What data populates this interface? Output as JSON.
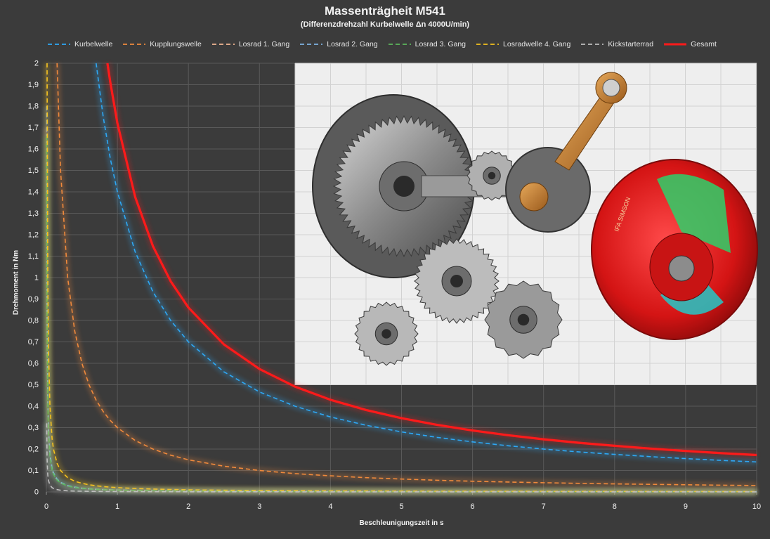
{
  "title": "Massenträgheit M541",
  "subtitle": "(Differenzdrehzahl Kurbelwelle Δn 4000U/min)",
  "chart_data": {
    "type": "line",
    "title": "Massenträgheit M541",
    "subtitle": "(Differenzdrehzahl Kurbelwelle Δn 4000U/min)",
    "xlabel": "Beschleunigungszeit in s",
    "ylabel": "Drehmoment in Nm",
    "xlim": [
      0,
      10
    ],
    "ylim": [
      0,
      2
    ],
    "x_ticks": [
      "0",
      "1",
      "2",
      "3",
      "4",
      "5",
      "6",
      "7",
      "8",
      "9",
      "10"
    ],
    "y_ticks": [
      "0",
      "0,1",
      "0,2",
      "0,3",
      "0,4",
      "0,5",
      "0,6",
      "0,7",
      "0,8",
      "0,9",
      "1",
      "1,1",
      "1,2",
      "1,3",
      "1,4",
      "1,5",
      "1,6",
      "1,7",
      "1,8",
      "1,9",
      "2"
    ],
    "grid": true,
    "legend_position": "top",
    "x": [
      0.01,
      0.02,
      0.03,
      0.05,
      0.08,
      0.1,
      0.15,
      0.2,
      0.3,
      0.4,
      0.5,
      0.6,
      0.7,
      0.8,
      0.9,
      1,
      1.25,
      1.5,
      1.75,
      2,
      2.5,
      3,
      3.5,
      4,
      4.5,
      5,
      5.5,
      6,
      6.5,
      7,
      7.5,
      8,
      8.5,
      9,
      9.5,
      10
    ],
    "series": [
      {
        "name": "Kurbelwelle",
        "color": "#2ea8f5",
        "dash": true,
        "k": 1.4
      },
      {
        "name": "Kupplungswelle",
        "color": "#f08a3c",
        "dash": true,
        "k": 0.3
      },
      {
        "name": "Losrad 1. Gang",
        "color": "#f3b893",
        "dash": true,
        "k": 0.0085
      },
      {
        "name": "Losrad 2. Gang",
        "color": "#7fb2e2",
        "dash": true,
        "k": 0.009
      },
      {
        "name": "Losrad 3. Gang",
        "color": "#5cb85c",
        "dash": true,
        "k": 0.0083
      },
      {
        "name": "Losradwelle 4. Gang",
        "color": "#f6c21c",
        "dash": true,
        "k": 0.02
      },
      {
        "name": "Kickstarterrad",
        "color": "#bfbfbf",
        "dash": true,
        "k": 0.0016
      },
      {
        "name": "Gesamt",
        "color": "#ff1a1a",
        "dash": false,
        "k": 1.72
      }
    ]
  },
  "image": {
    "description": "Rendered drivetrain model: clutch basket, gears, crankshaft with connecting rod and red flywheel",
    "flywheel_text": "IFA SIMSON"
  }
}
